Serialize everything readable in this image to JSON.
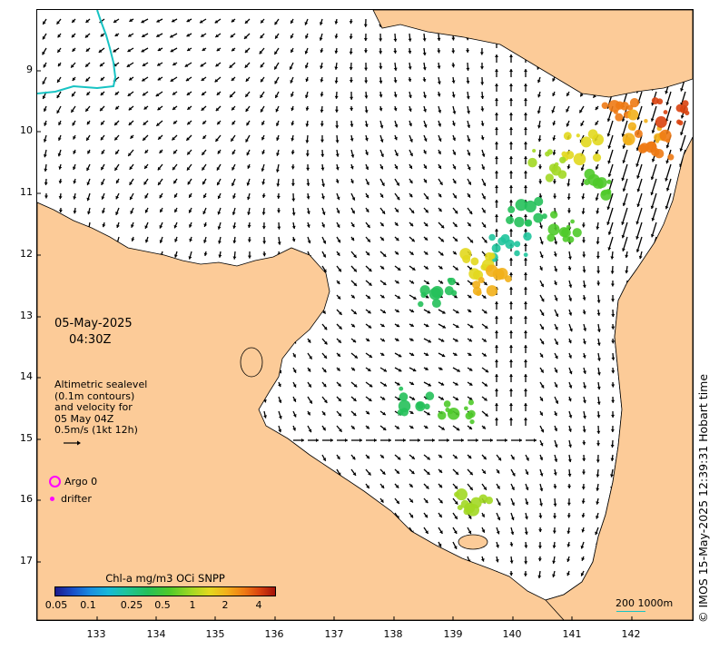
{
  "map": {
    "land_color": "#fccb98",
    "sea_color": "#ffffff",
    "contour_color": "#17c3c3",
    "vector_color": "#000000",
    "y_ticks": [
      "9",
      "10",
      "11",
      "12",
      "13",
      "14",
      "15",
      "16",
      "17"
    ],
    "x_ticks": [
      "133",
      "134",
      "135",
      "136",
      "137",
      "138",
      "139",
      "140",
      "141",
      "142"
    ]
  },
  "annotation": {
    "date": "05-May-2025",
    "time": "04:30Z",
    "altimetry_lines": [
      "Altimetric sealevel",
      "(0.1m contours)",
      "and velocity for",
      "05 May 04Z",
      "0.5m/s (1kt 12h)"
    ]
  },
  "legend": {
    "argo_label": "Argo 0",
    "drifter_label": "drifter",
    "argo_color": "#ff00ff"
  },
  "colorbar": {
    "title": "Chl-a mg/m3 OCi SNPP",
    "ticks": [
      "0.05",
      "0.1",
      "0.25",
      "0.5",
      "1",
      "2",
      "4"
    ]
  },
  "scale": {
    "label": "200  1000m"
  },
  "credit": "© IMOS 15-May-2025 12:39:31 Hobart time"
}
